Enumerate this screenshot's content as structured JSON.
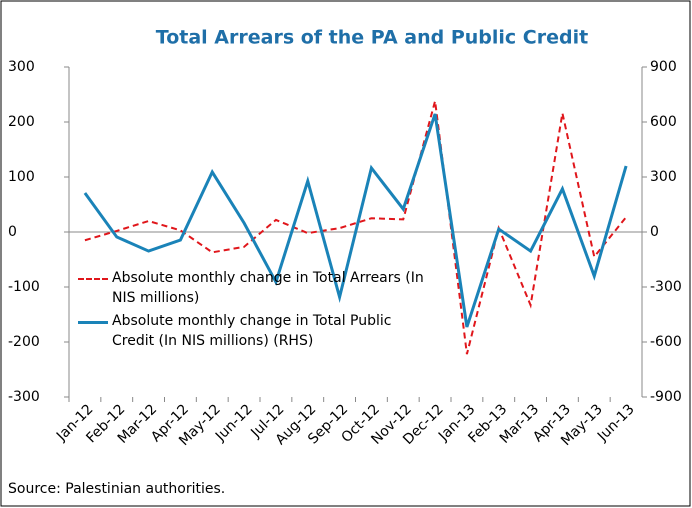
{
  "chart_data": {
    "type": "line",
    "title": "Total Arrears of the PA and Public Credit",
    "source": "Source: Palestinian authorities.",
    "categories": [
      "Jan-12",
      "Feb-12",
      "Mar-12",
      "Apr-12",
      "May-12",
      "Jun-12",
      "Jul-12",
      "Aug-12",
      "Sep-12",
      "Oct-12",
      "Nov-12",
      "Dec-12",
      "Jan-13",
      "Feb-13",
      "Mar-13",
      "Apr-13",
      "May-13",
      "Jun-13"
    ],
    "series": [
      {
        "name": "Absolute monthly change in Total Arrears (In NIS millions)",
        "color": "#e0161b",
        "dashed": true,
        "values": [
          -15,
          2,
          20,
          3,
          -37,
          -27,
          22,
          -2,
          7,
          25,
          23,
          238,
          -222,
          7,
          -133,
          216,
          -45,
          27
        ]
      },
      {
        "name": "Absolute monthly change in Total Public Credit (In NIS millions) (RHS)",
        "color": "#1a83b8",
        "dashed": false,
        "axis": "y2",
        "values": [
          213,
          -27,
          -104,
          -44,
          327,
          49,
          -273,
          278,
          -355,
          349,
          125,
          644,
          -518,
          16,
          -104,
          235,
          -240,
          360
        ]
      }
    ],
    "ylim": [
      -300,
      300
    ],
    "yticks": [
      -300,
      -200,
      -100,
      0,
      100,
      200,
      300
    ],
    "y2lim": [
      -900,
      900
    ],
    "y2ticks": [
      -900,
      -600,
      -300,
      0,
      300,
      600,
      900
    ],
    "legend": "lower-left"
  }
}
